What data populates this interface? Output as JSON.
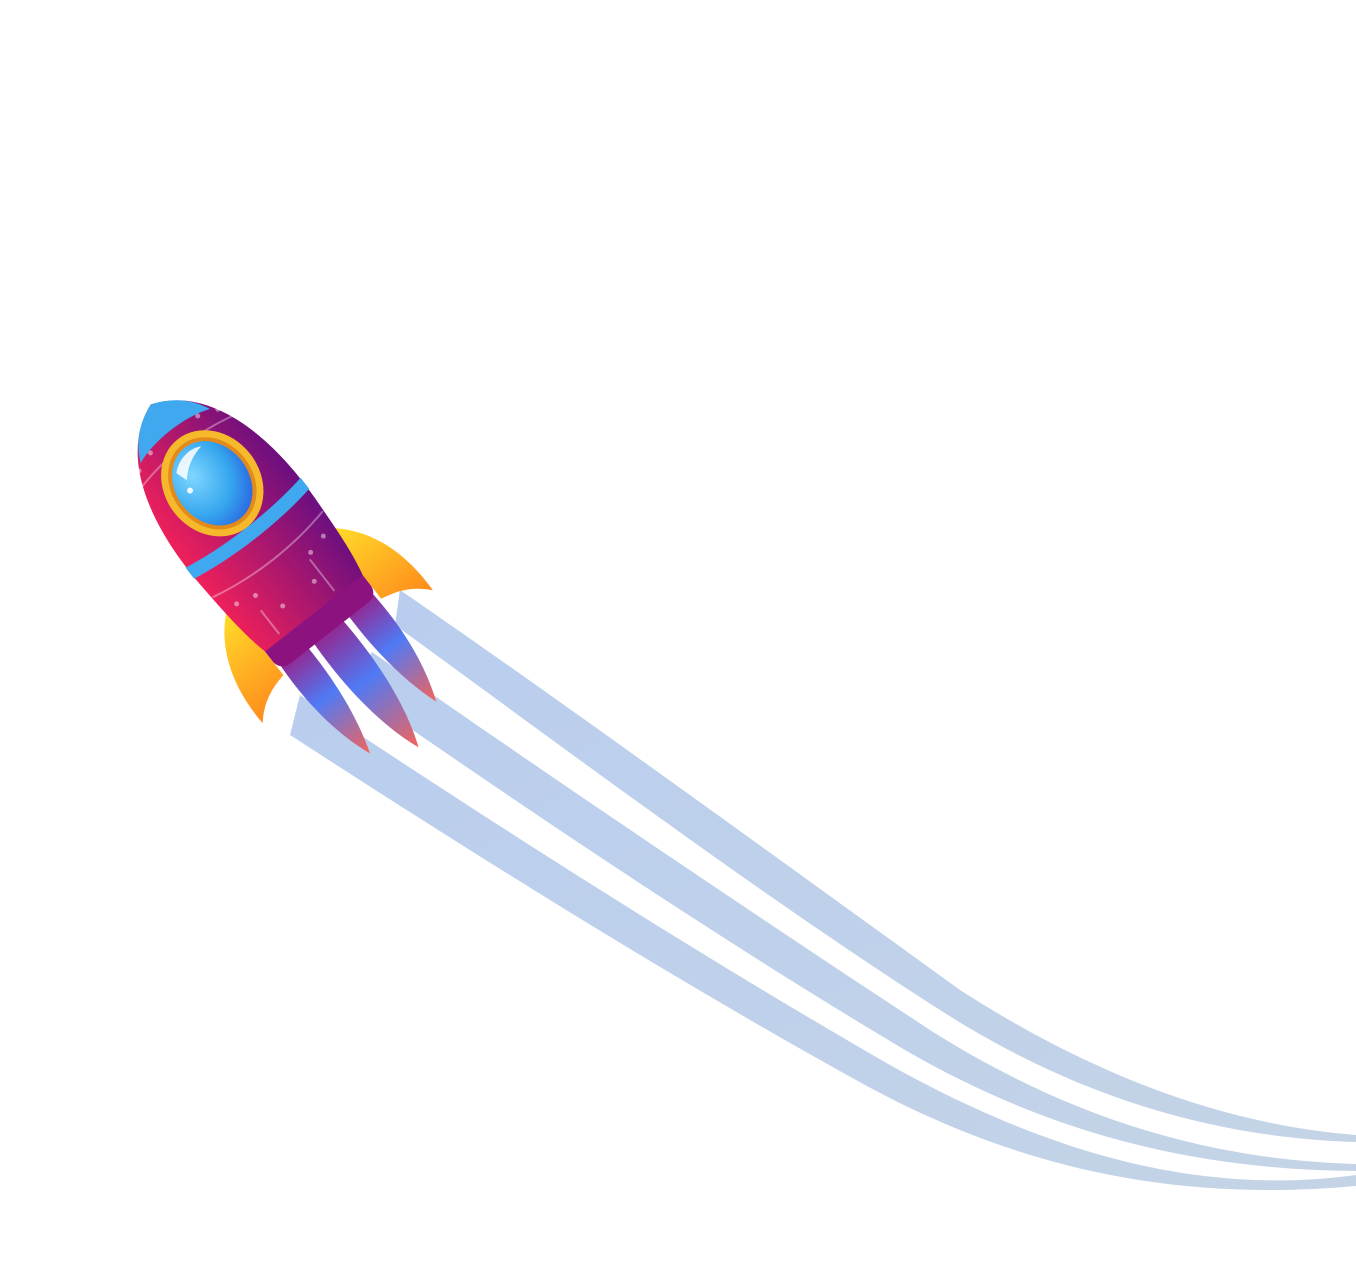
{
  "illustration": {
    "subject": "rocket",
    "colors": {
      "background": "#ffffff",
      "trail": "#b9cdee",
      "trail_end": "#c4d4e6",
      "body_light": "#f0205a",
      "body_dark": "#6a0f80",
      "window_frame": "#f5b92b",
      "window_glass": "#35a6ee",
      "fin": "#ff8a1c",
      "flame": "#4f7af5",
      "flame_edge": "#f4635a",
      "stripe": "#3fa8ee"
    }
  }
}
